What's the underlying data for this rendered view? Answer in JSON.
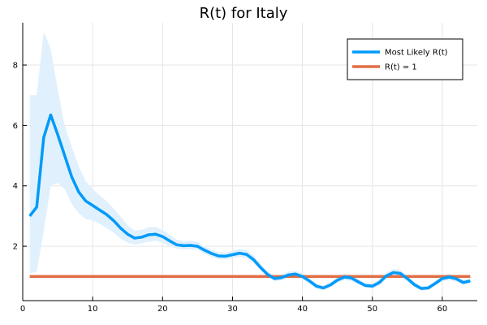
{
  "chart_data": {
    "type": "line",
    "title": "R(t) for Italy",
    "xlabel": "",
    "ylabel": "",
    "xlim": [
      0,
      65
    ],
    "ylim": [
      0.2,
      9.4
    ],
    "x_ticks": [
      0,
      10,
      20,
      30,
      40,
      50,
      60
    ],
    "y_ticks": [
      2,
      4,
      6,
      8
    ],
    "grid": true,
    "legend_position": "top-right",
    "x": [
      1,
      2,
      3,
      4,
      5,
      6,
      7,
      8,
      9,
      10,
      11,
      12,
      13,
      14,
      15,
      16,
      17,
      18,
      19,
      20,
      21,
      22,
      23,
      24,
      25,
      26,
      27,
      28,
      29,
      30,
      31,
      32,
      33,
      34,
      35,
      36,
      37,
      38,
      39,
      40,
      41,
      42,
      43,
      44,
      45,
      46,
      47,
      48,
      49,
      50,
      51,
      52,
      53,
      54,
      55,
      56,
      57,
      58,
      59,
      60,
      61,
      62,
      63,
      64
    ],
    "series": [
      {
        "name": "Most Likely R(t)",
        "color": "#009af9",
        "band_color": "#e0f1fd",
        "values": [
          3.0,
          3.3,
          5.6,
          6.35,
          5.7,
          5.0,
          4.3,
          3.8,
          3.5,
          3.35,
          3.2,
          3.05,
          2.85,
          2.6,
          2.4,
          2.27,
          2.3,
          2.38,
          2.4,
          2.32,
          2.18,
          2.05,
          2.02,
          2.03,
          2.0,
          1.87,
          1.76,
          1.68,
          1.67,
          1.72,
          1.77,
          1.73,
          1.56,
          1.3,
          1.07,
          0.93,
          0.96,
          1.05,
          1.08,
          1.0,
          0.85,
          0.68,
          0.62,
          0.72,
          0.88,
          0.98,
          0.95,
          0.82,
          0.7,
          0.68,
          0.8,
          1.02,
          1.13,
          1.1,
          0.93,
          0.73,
          0.6,
          0.62,
          0.77,
          0.93,
          0.98,
          0.92,
          0.8,
          0.85
        ],
        "lower": [
          1.1,
          1.15,
          2.5,
          4.0,
          4.1,
          3.9,
          3.4,
          3.1,
          2.9,
          2.85,
          2.75,
          2.6,
          2.45,
          2.25,
          2.12,
          2.05,
          2.1,
          2.15,
          2.18,
          2.12,
          2.0,
          1.92,
          1.9,
          1.9,
          1.88,
          1.76,
          1.64,
          1.57,
          1.56,
          1.6,
          1.65,
          1.6,
          1.45,
          1.2,
          0.98,
          0.85,
          0.87,
          0.95,
          0.98,
          0.9,
          0.76,
          0.6,
          0.55,
          0.64,
          0.79,
          0.88,
          0.85,
          0.73,
          0.62,
          0.6,
          0.71,
          0.92,
          1.02,
          0.99,
          0.83,
          0.65,
          0.53,
          0.55,
          0.69,
          0.84,
          0.88,
          0.83,
          0.72,
          0.77
        ],
        "upper": [
          7.0,
          7.0,
          9.1,
          8.55,
          7.2,
          6.0,
          5.3,
          4.65,
          4.15,
          3.9,
          3.68,
          3.5,
          3.25,
          2.98,
          2.7,
          2.52,
          2.54,
          2.63,
          2.64,
          2.54,
          2.38,
          2.22,
          2.17,
          2.18,
          2.15,
          2.0,
          1.89,
          1.81,
          1.79,
          1.85,
          1.91,
          1.88,
          1.7,
          1.42,
          1.17,
          1.02,
          1.06,
          1.16,
          1.19,
          1.1,
          0.94,
          0.77,
          0.7,
          0.81,
          0.98,
          1.09,
          1.06,
          0.92,
          0.79,
          0.77,
          0.9,
          1.13,
          1.25,
          1.22,
          1.04,
          0.82,
          0.68,
          0.7,
          0.86,
          1.03,
          1.09,
          1.02,
          0.89,
          0.94
        ]
      },
      {
        "name": "R(t) = 1",
        "color": "#e26f46",
        "values": [
          1,
          1,
          1,
          1,
          1,
          1,
          1,
          1,
          1,
          1,
          1,
          1,
          1,
          1,
          1,
          1,
          1,
          1,
          1,
          1,
          1,
          1,
          1,
          1,
          1,
          1,
          1,
          1,
          1,
          1,
          1,
          1,
          1,
          1,
          1,
          1,
          1,
          1,
          1,
          1,
          1,
          1,
          1,
          1,
          1,
          1,
          1,
          1,
          1,
          1,
          1,
          1,
          1,
          1,
          1,
          1,
          1,
          1,
          1,
          1,
          1,
          1,
          1,
          1
        ]
      }
    ]
  }
}
